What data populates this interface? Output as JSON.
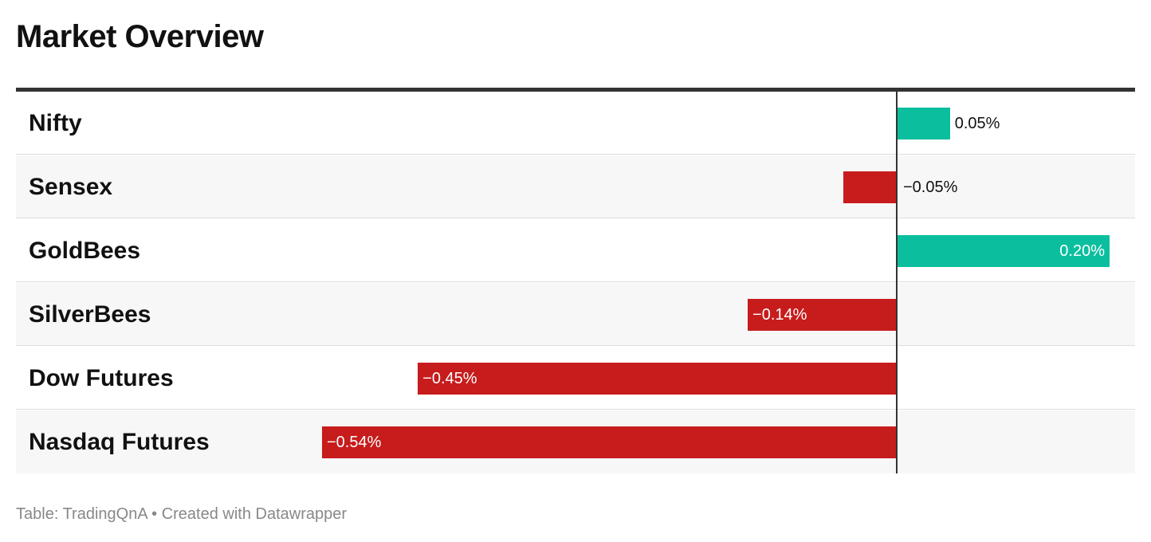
{
  "title": "Market Overview",
  "footer": {
    "source": "Table: TradingQnA",
    "separator": "•",
    "credit": "Created with Datawrapper"
  },
  "colors": {
    "positive": "#0bbf9e",
    "negative": "#c71c1c",
    "axis": "#333333",
    "row_alt": "#f7f7f7"
  },
  "chart_data": {
    "type": "bar",
    "orientation": "horizontal",
    "categories": [
      "Nifty",
      "Sensex",
      "GoldBees",
      "SilverBees",
      "Dow Futures",
      "Nasdaq Futures"
    ],
    "values": [
      0.05,
      -0.05,
      0.2,
      -0.14,
      -0.45,
      -0.54
    ],
    "labels": [
      "0.05%",
      "−0.05%",
      "0.20%",
      "−0.14%",
      "−0.45%",
      "−0.54%"
    ],
    "unit": "%",
    "xlim": [
      -0.54,
      0.2
    ]
  }
}
